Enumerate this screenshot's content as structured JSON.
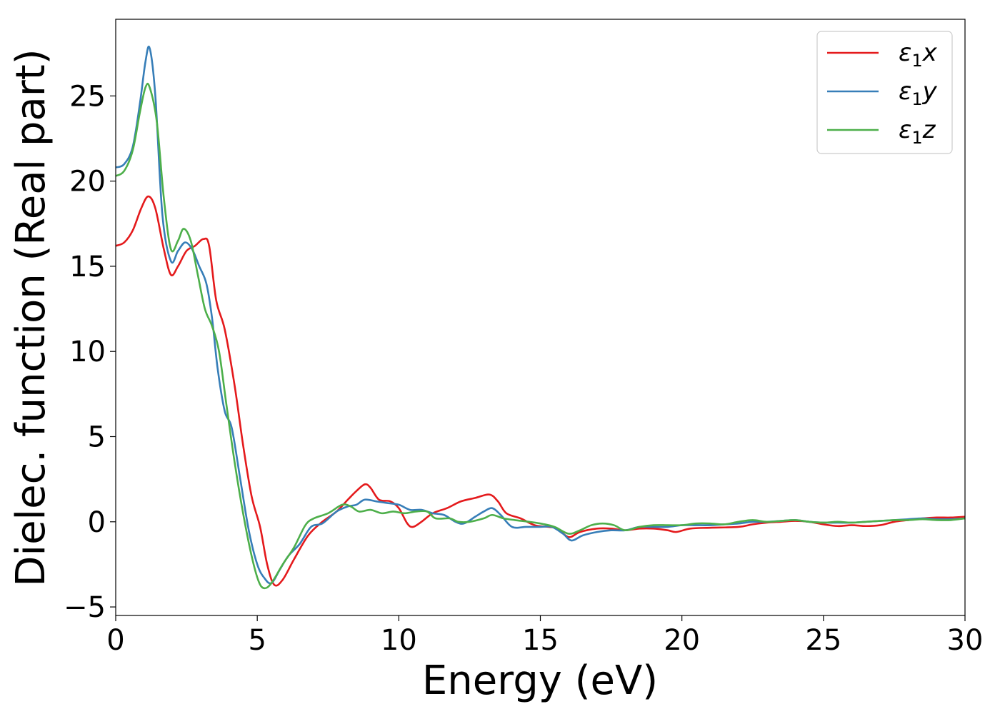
{
  "chart_data": {
    "type": "line",
    "xlabel": "Energy (eV)",
    "ylabel": "Dielec. function (Real part)",
    "xlim": [
      0,
      30
    ],
    "ylim": [
      -5.5,
      29.5
    ],
    "xticks": [
      0,
      5,
      10,
      15,
      20,
      25,
      30
    ],
    "yticks": [
      -5,
      0,
      5,
      10,
      15,
      20,
      25
    ],
    "xtick_labels": [
      "0",
      "5",
      "10",
      "15",
      "20",
      "25",
      "30"
    ],
    "ytick_labels": [
      "−5",
      "0",
      "5",
      "10",
      "15",
      "20",
      "25"
    ],
    "grid": false,
    "legend_position": "top-right",
    "series": [
      {
        "name": "ε₁x",
        "legend_main": "ε",
        "legend_sub": "1",
        "legend_tail": "x",
        "color": "#e41a1c",
        "points": [
          [
            0,
            16.2
          ],
          [
            0.3,
            16.4
          ],
          [
            0.6,
            17.1
          ],
          [
            0.9,
            18.4
          ],
          [
            1.15,
            19.1
          ],
          [
            1.4,
            18.4
          ],
          [
            1.7,
            16.0
          ],
          [
            1.95,
            14.5
          ],
          [
            2.2,
            15.0
          ],
          [
            2.5,
            15.9
          ],
          [
            2.8,
            16.2
          ],
          [
            3.1,
            16.6
          ],
          [
            3.3,
            16.2
          ],
          [
            3.55,
            13.0
          ],
          [
            3.85,
            11.3
          ],
          [
            4.2,
            8.0
          ],
          [
            4.5,
            4.5
          ],
          [
            4.8,
            1.5
          ],
          [
            5.1,
            -0.3
          ],
          [
            5.35,
            -2.5
          ],
          [
            5.6,
            -3.7
          ],
          [
            5.9,
            -3.4
          ],
          [
            6.3,
            -2.2
          ],
          [
            6.8,
            -0.8
          ],
          [
            7.3,
            0.0
          ],
          [
            7.8,
            0.6
          ],
          [
            8.2,
            1.3
          ],
          [
            8.5,
            1.8
          ],
          [
            8.8,
            2.2
          ],
          [
            9.0,
            2.0
          ],
          [
            9.3,
            1.3
          ],
          [
            9.7,
            1.2
          ],
          [
            10.0,
            0.8
          ],
          [
            10.3,
            -0.1
          ],
          [
            10.5,
            -0.3
          ],
          [
            10.8,
            0.0
          ],
          [
            11.2,
            0.5
          ],
          [
            11.7,
            0.8
          ],
          [
            12.2,
            1.2
          ],
          [
            12.7,
            1.4
          ],
          [
            13.2,
            1.6
          ],
          [
            13.5,
            1.2
          ],
          [
            13.8,
            0.5
          ],
          [
            14.3,
            0.2
          ],
          [
            14.8,
            -0.2
          ],
          [
            15.3,
            -0.3
          ],
          [
            15.6,
            -0.4
          ],
          [
            16.0,
            -0.9
          ],
          [
            16.4,
            -0.6
          ],
          [
            17.0,
            -0.4
          ],
          [
            17.5,
            -0.4
          ],
          [
            18.0,
            -0.5
          ],
          [
            18.5,
            -0.4
          ],
          [
            19.0,
            -0.4
          ],
          [
            19.5,
            -0.5
          ],
          [
            19.8,
            -0.6
          ],
          [
            20.3,
            -0.4
          ],
          [
            21.0,
            -0.35
          ],
          [
            22.0,
            -0.3
          ],
          [
            22.5,
            -0.15
          ],
          [
            23.0,
            -0.05
          ],
          [
            23.5,
            0.0
          ],
          [
            24.0,
            0.05
          ],
          [
            24.5,
            0.0
          ],
          [
            25.0,
            -0.15
          ],
          [
            25.5,
            -0.25
          ],
          [
            26.0,
            -0.2
          ],
          [
            26.5,
            -0.25
          ],
          [
            27.0,
            -0.2
          ],
          [
            27.5,
            0.0
          ],
          [
            28.0,
            0.1
          ],
          [
            28.5,
            0.2
          ],
          [
            29.0,
            0.25
          ],
          [
            29.5,
            0.25
          ],
          [
            30.0,
            0.3
          ]
        ]
      },
      {
        "name": "ε₁y",
        "legend_main": "ε",
        "legend_sub": "1",
        "legend_tail": "y",
        "color": "#377eb8",
        "points": [
          [
            0,
            20.8
          ],
          [
            0.3,
            21.0
          ],
          [
            0.6,
            22.0
          ],
          [
            0.85,
            24.5
          ],
          [
            1.05,
            27.0
          ],
          [
            1.2,
            27.8
          ],
          [
            1.4,
            25.0
          ],
          [
            1.65,
            18.0
          ],
          [
            1.95,
            15.3
          ],
          [
            2.2,
            15.9
          ],
          [
            2.45,
            16.4
          ],
          [
            2.7,
            16.0
          ],
          [
            2.95,
            15.0
          ],
          [
            3.2,
            14.0
          ],
          [
            3.4,
            12.0
          ],
          [
            3.6,
            9.0
          ],
          [
            3.85,
            6.5
          ],
          [
            4.1,
            5.5
          ],
          [
            4.4,
            2.5
          ],
          [
            4.7,
            -0.5
          ],
          [
            5.0,
            -2.5
          ],
          [
            5.25,
            -3.3
          ],
          [
            5.5,
            -3.6
          ],
          [
            5.8,
            -2.8
          ],
          [
            6.1,
            -2.0
          ],
          [
            6.5,
            -1.3
          ],
          [
            6.9,
            -0.3
          ],
          [
            7.3,
            -0.1
          ],
          [
            7.8,
            0.6
          ],
          [
            8.2,
            0.9
          ],
          [
            8.5,
            1.0
          ],
          [
            8.8,
            1.3
          ],
          [
            9.2,
            1.2
          ],
          [
            9.6,
            1.1
          ],
          [
            10.0,
            1.0
          ],
          [
            10.4,
            0.7
          ],
          [
            10.8,
            0.7
          ],
          [
            11.2,
            0.5
          ],
          [
            11.6,
            0.4
          ],
          [
            12.0,
            0.0
          ],
          [
            12.3,
            -0.1
          ],
          [
            12.7,
            0.3
          ],
          [
            13.0,
            0.6
          ],
          [
            13.3,
            0.8
          ],
          [
            13.6,
            0.4
          ],
          [
            14.0,
            -0.3
          ],
          [
            14.5,
            -0.3
          ],
          [
            15.0,
            -0.3
          ],
          [
            15.4,
            -0.3
          ],
          [
            15.8,
            -0.7
          ],
          [
            16.1,
            -1.1
          ],
          [
            16.5,
            -0.8
          ],
          [
            17.0,
            -0.6
          ],
          [
            17.5,
            -0.5
          ],
          [
            18.0,
            -0.5
          ],
          [
            18.5,
            -0.3
          ],
          [
            19.0,
            -0.3
          ],
          [
            19.5,
            -0.3
          ],
          [
            20.0,
            -0.2
          ],
          [
            20.5,
            -0.2
          ],
          [
            21.0,
            -0.2
          ],
          [
            21.5,
            -0.15
          ],
          [
            22.0,
            -0.1
          ],
          [
            22.5,
            0.0
          ],
          [
            23.0,
            0.0
          ],
          [
            23.5,
            0.05
          ],
          [
            24.0,
            0.1
          ],
          [
            24.5,
            0.0
          ],
          [
            25.0,
            -0.05
          ],
          [
            25.5,
            -0.05
          ],
          [
            26.0,
            -0.05
          ],
          [
            26.5,
            0.0
          ],
          [
            27.0,
            0.05
          ],
          [
            27.5,
            0.1
          ],
          [
            28.0,
            0.15
          ],
          [
            28.5,
            0.2
          ],
          [
            29.0,
            0.15
          ],
          [
            29.5,
            0.15
          ],
          [
            30.0,
            0.2
          ]
        ]
      },
      {
        "name": "ε₁z",
        "legend_main": "ε",
        "legend_sub": "1",
        "legend_tail": "z",
        "color": "#4daf4a",
        "points": [
          [
            0,
            20.3
          ],
          [
            0.3,
            20.6
          ],
          [
            0.6,
            21.8
          ],
          [
            0.85,
            24.0
          ],
          [
            1.05,
            25.5
          ],
          [
            1.2,
            25.5
          ],
          [
            1.45,
            23.5
          ],
          [
            1.7,
            19.0
          ],
          [
            1.95,
            16.0
          ],
          [
            2.2,
            16.5
          ],
          [
            2.4,
            17.2
          ],
          [
            2.65,
            16.5
          ],
          [
            2.9,
            14.5
          ],
          [
            3.15,
            12.5
          ],
          [
            3.4,
            11.5
          ],
          [
            3.65,
            10.0
          ],
          [
            3.9,
            7.0
          ],
          [
            4.2,
            3.5
          ],
          [
            4.5,
            0.5
          ],
          [
            4.8,
            -2.0
          ],
          [
            5.05,
            -3.5
          ],
          [
            5.25,
            -3.9
          ],
          [
            5.5,
            -3.6
          ],
          [
            5.9,
            -2.5
          ],
          [
            6.3,
            -1.5
          ],
          [
            6.7,
            -0.2
          ],
          [
            7.0,
            0.2
          ],
          [
            7.5,
            0.5
          ],
          [
            8.0,
            1.0
          ],
          [
            8.3,
            0.9
          ],
          [
            8.6,
            0.6
          ],
          [
            9.0,
            0.7
          ],
          [
            9.4,
            0.5
          ],
          [
            9.8,
            0.6
          ],
          [
            10.2,
            0.5
          ],
          [
            10.6,
            0.6
          ],
          [
            11.0,
            0.6
          ],
          [
            11.3,
            0.2
          ],
          [
            11.8,
            0.2
          ],
          [
            12.1,
            0.0
          ],
          [
            12.5,
            0.0
          ],
          [
            13.0,
            0.2
          ],
          [
            13.3,
            0.4
          ],
          [
            13.7,
            0.2
          ],
          [
            14.1,
            0.1
          ],
          [
            14.6,
            0.0
          ],
          [
            15.0,
            -0.1
          ],
          [
            15.5,
            -0.3
          ],
          [
            16.0,
            -0.7
          ],
          [
            16.4,
            -0.5
          ],
          [
            16.8,
            -0.2
          ],
          [
            17.2,
            -0.1
          ],
          [
            17.6,
            -0.2
          ],
          [
            18.0,
            -0.5
          ],
          [
            18.5,
            -0.3
          ],
          [
            19.0,
            -0.2
          ],
          [
            19.5,
            -0.2
          ],
          [
            20.0,
            -0.2
          ],
          [
            20.5,
            -0.1
          ],
          [
            21.0,
            -0.1
          ],
          [
            21.5,
            -0.15
          ],
          [
            22.0,
            0.0
          ],
          [
            22.5,
            0.1
          ],
          [
            23.0,
            0.0
          ],
          [
            23.5,
            0.05
          ],
          [
            24.0,
            0.1
          ],
          [
            24.5,
            0.0
          ],
          [
            25.0,
            -0.05
          ],
          [
            25.5,
            0.0
          ],
          [
            26.0,
            -0.05
          ],
          [
            26.5,
            0.0
          ],
          [
            27.0,
            0.05
          ],
          [
            27.5,
            0.1
          ],
          [
            28.0,
            0.1
          ],
          [
            28.5,
            0.15
          ],
          [
            29.0,
            0.1
          ],
          [
            29.5,
            0.1
          ],
          [
            30.0,
            0.2
          ]
        ]
      }
    ]
  }
}
